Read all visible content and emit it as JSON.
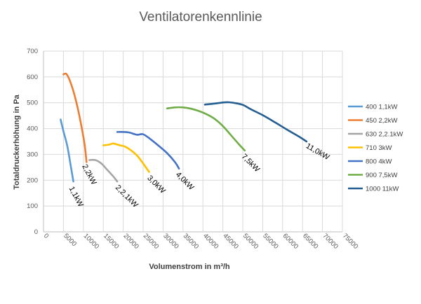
{
  "chart_data": {
    "type": "line",
    "title": "Ventilatorenkennlinie",
    "xlabel": "Volumenstrom in m³/h",
    "ylabel": "Totaldruckerhöhung in Pa",
    "xlim": [
      0,
      75000
    ],
    "ylim": [
      0,
      700
    ],
    "x_ticks": [
      0,
      5000,
      10000,
      15000,
      20000,
      25000,
      30000,
      35000,
      40000,
      45000,
      50000,
      55000,
      60000,
      65000,
      70000,
      75000
    ],
    "y_ticks": [
      0,
      100,
      200,
      300,
      400,
      500,
      600,
      700
    ],
    "grid": true,
    "legend_position": "right",
    "series": [
      {
        "name": "400 1,1kW",
        "color": "#5b9bd5",
        "annotation": "1,1kW",
        "x": [
          4300,
          5000,
          6000,
          7000,
          7500
        ],
        "y": [
          435,
          390,
          330,
          240,
          195
        ]
      },
      {
        "name": "450 2,2kW",
        "color": "#ed7d31",
        "annotation": "2,2kW",
        "x": [
          5000,
          5700,
          6500,
          7500,
          8500,
          9500,
          10300,
          10800
        ],
        "y": [
          610,
          612,
          590,
          545,
          485,
          410,
          340,
          270
        ]
      },
      {
        "name": "630 2,2.1kW",
        "color": "#a5a5a5",
        "annotation": "2,2,1kW",
        "x": [
          11500,
          13000,
          14500,
          16000,
          17500,
          18500
        ],
        "y": [
          278,
          278,
          265,
          240,
          215,
          195
        ]
      },
      {
        "name": "710 3kW",
        "color": "#ffc000",
        "annotation": "3,0kW",
        "x": [
          15000,
          16500,
          17500,
          19000,
          20500,
          22000,
          23500,
          25000,
          26500
        ],
        "y": [
          335,
          338,
          342,
          336,
          330,
          315,
          295,
          265,
          232
        ]
      },
      {
        "name": "800 4kW",
        "color": "#4472c4",
        "annotation": "4,0kW",
        "x": [
          18500,
          20000,
          21500,
          23500,
          25000,
          27000,
          29000,
          31000,
          33000,
          34000
        ],
        "y": [
          387,
          387,
          385,
          376,
          378,
          357,
          332,
          305,
          270,
          245
        ]
      },
      {
        "name": "900 7,5kW",
        "color": "#70ad47",
        "annotation": "7,5kW",
        "x": [
          31000,
          33000,
          35000,
          37000,
          39000,
          41000,
          43000,
          45000,
          47000,
          49000,
          50500
        ],
        "y": [
          478,
          482,
          482,
          477,
          468,
          455,
          437,
          410,
          375,
          340,
          315
        ]
      },
      {
        "name": "1000 11kW",
        "color": "#255e91",
        "annotation": "11,0kW",
        "x": [
          40500,
          43000,
          45000,
          46500,
          48000,
          50000,
          52000,
          55000,
          58000,
          61000,
          64000,
          66000
        ],
        "y": [
          493,
          497,
          501,
          502,
          499,
          492,
          475,
          452,
          425,
          397,
          370,
          350
        ]
      }
    ]
  }
}
